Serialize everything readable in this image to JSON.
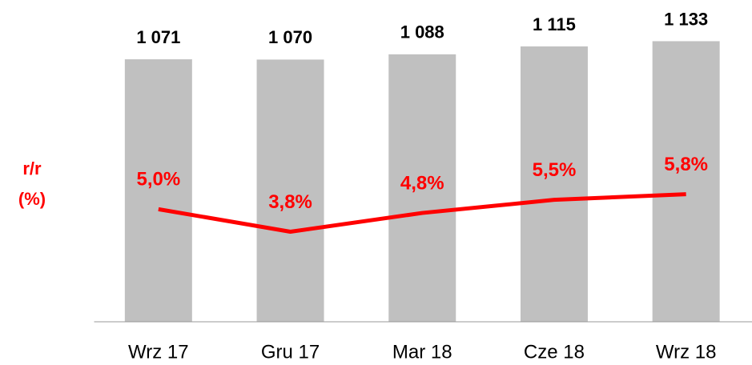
{
  "chart_data": {
    "type": "bar-line",
    "categories": [
      "Wrz 17",
      "Gru 17",
      "Mar 18",
      "Cze 18",
      "Wrz 18"
    ],
    "series": [
      {
        "type": "bar",
        "color": "#c0c0c0",
        "values": [
          1071,
          1070,
          1088,
          1115,
          1133
        ],
        "value_labels": [
          "1 071",
          "1 070",
          "1 088",
          "1 115",
          "1 133"
        ]
      },
      {
        "type": "line",
        "axis": "y2",
        "color": "#ff0000",
        "values": [
          5.0,
          3.8,
          4.8,
          5.5,
          5.8
        ],
        "value_labels": [
          "5,0%",
          "3,8%",
          "4,8%",
          "5,5%",
          "5,8%"
        ]
      }
    ],
    "y2label": [
      "r/r",
      "(%)"
    ],
    "ylim": [
      172,
      1200
    ],
    "y2lim": [
      -1,
      15
    ]
  }
}
